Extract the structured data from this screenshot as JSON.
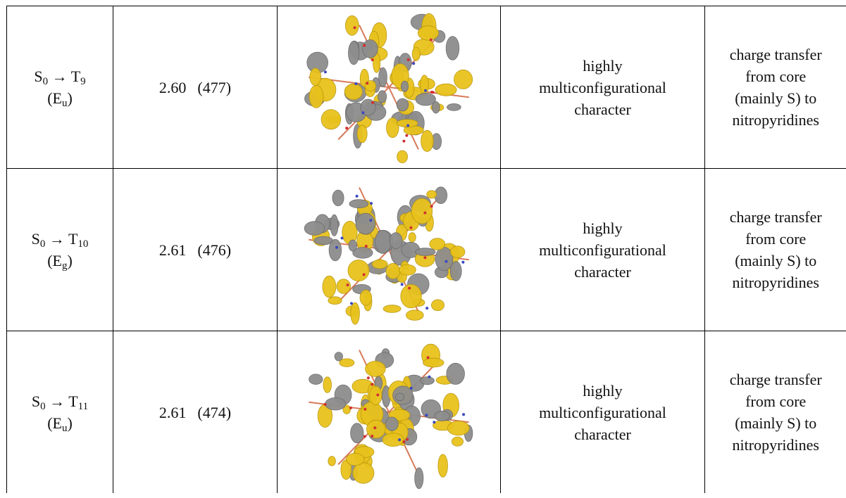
{
  "table": {
    "rows": [
      {
        "transition": {
          "from": "S",
          "from_sub": "0",
          "arrow": "→",
          "to": "T",
          "to_sub": "9"
        },
        "symmetry": {
          "open": "(",
          "label": "E",
          "sub": "u",
          "close": ")"
        },
        "energy": "2.60",
        "wavelength": "(477)",
        "character": [
          "highly",
          "multiconfigurational",
          "character"
        ],
        "description": [
          "charge transfer",
          "from core",
          "(mainly S) to",
          "nitropyridines"
        ]
      },
      {
        "transition": {
          "from": "S",
          "from_sub": "0",
          "arrow": "→",
          "to": "T",
          "to_sub": "10"
        },
        "symmetry": {
          "open": "(",
          "label": "E",
          "sub": "g",
          "close": ")"
        },
        "energy": "2.61",
        "wavelength": "(476)",
        "character": [
          "highly",
          "multiconfigurational",
          "character"
        ],
        "description": [
          "charge transfer",
          "from core",
          "(mainly S) to",
          "nitropyridines"
        ]
      },
      {
        "transition": {
          "from": "S",
          "from_sub": "0",
          "arrow": "→",
          "to": "T",
          "to_sub": "11"
        },
        "symmetry": {
          "open": "(",
          "label": "E",
          "sub": "u",
          "close": ")"
        },
        "energy": "2.61",
        "wavelength": "(474)",
        "character": [
          "highly",
          "multiconfigurational",
          "character"
        ],
        "description": [
          "charge transfer",
          "from core",
          "(mainly S) to",
          "nitropyridines"
        ]
      }
    ]
  }
}
